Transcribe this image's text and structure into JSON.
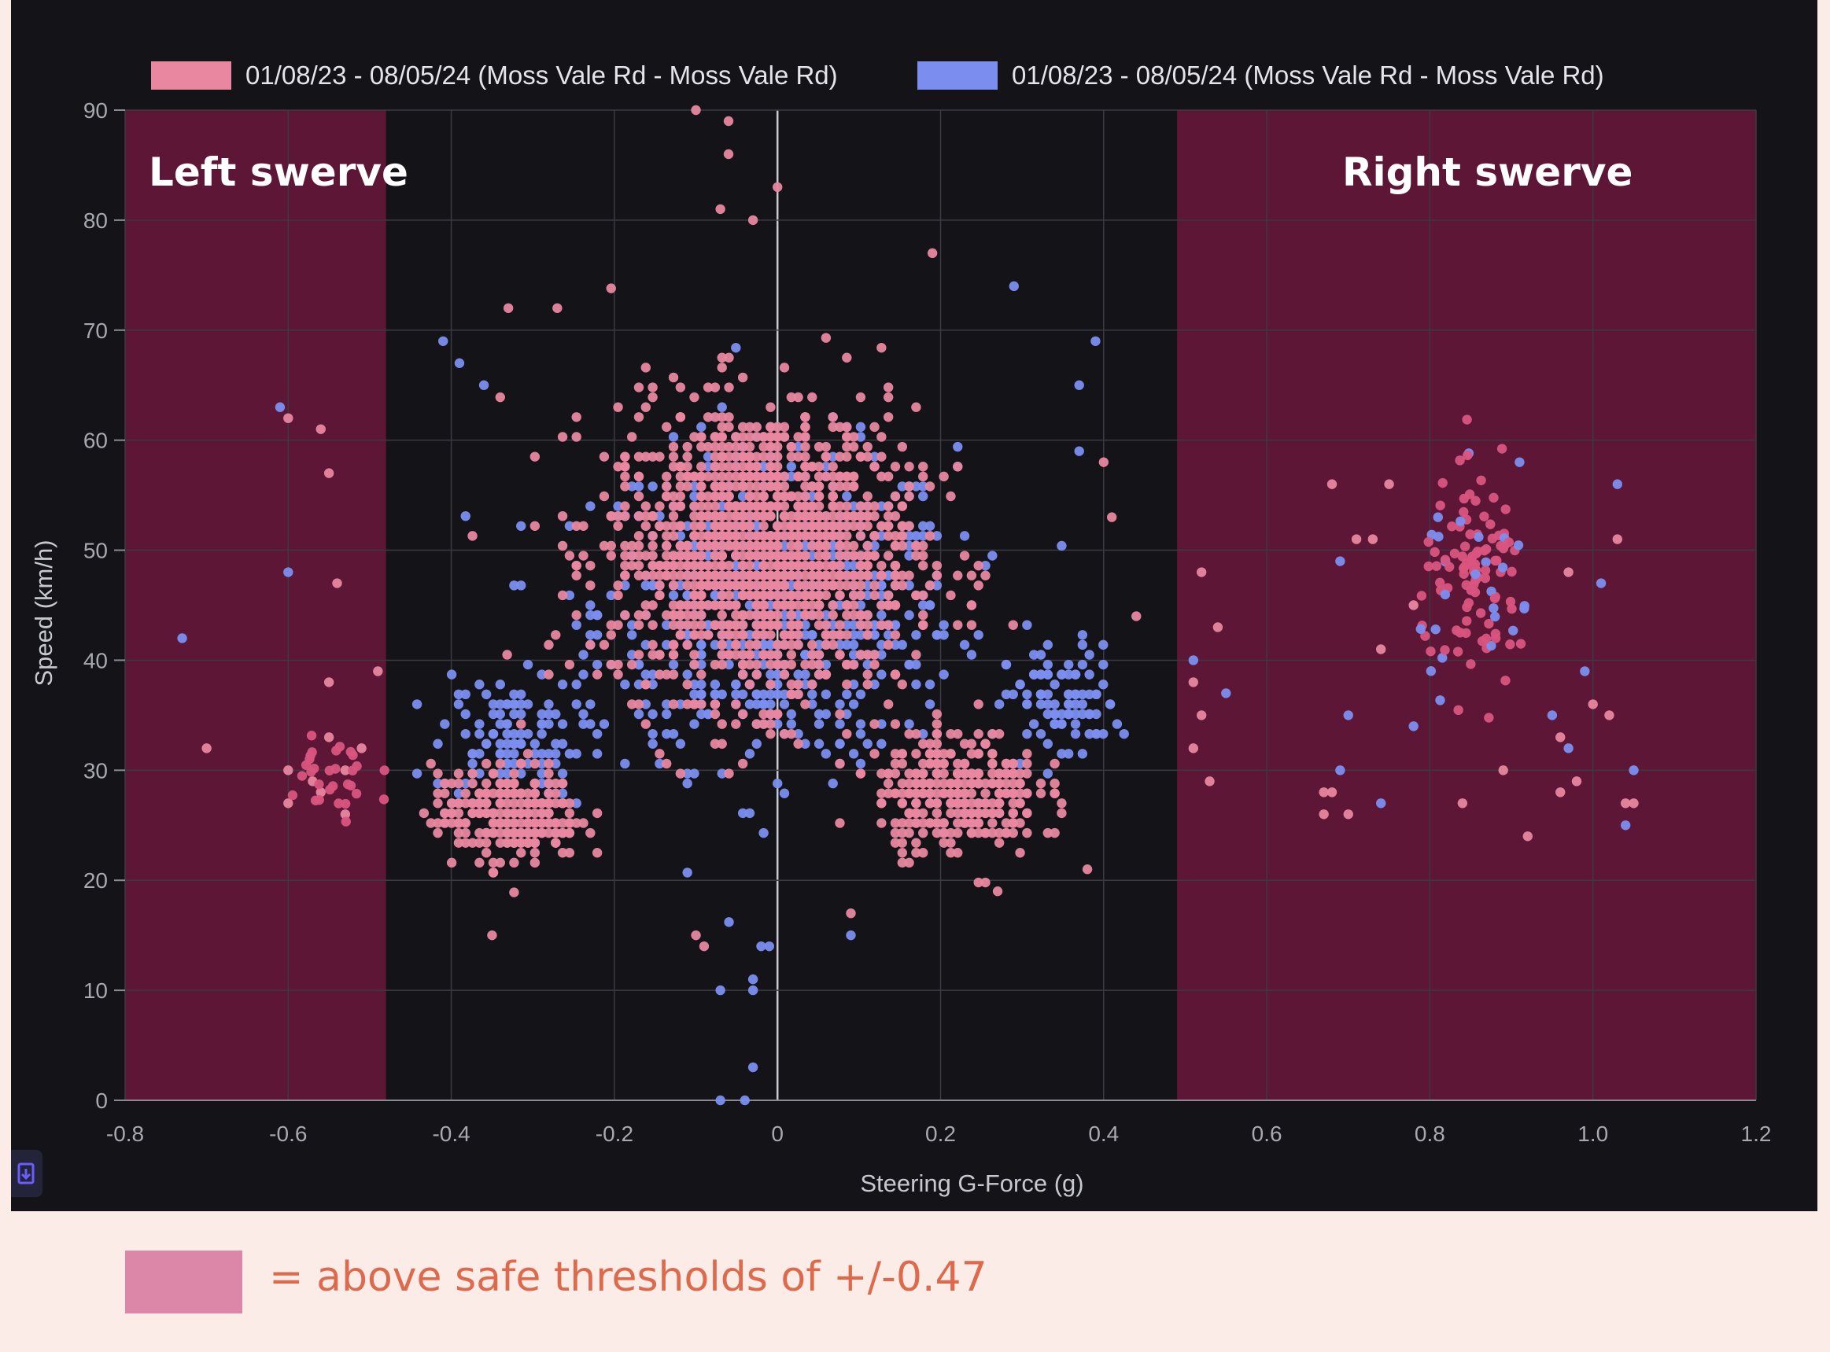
{
  "chart_data": {
    "type": "scatter",
    "title": "",
    "xlabel": "Steering G-Force (g)",
    "ylabel": "Speed (km/h)",
    "xlim": [
      -0.8,
      1.2
    ],
    "ylim": [
      0,
      90
    ],
    "x_ticks": [
      "-0.8",
      "-0.6",
      "-0.4",
      "-0.2",
      "0",
      "0.2",
      "0.4",
      "0.6",
      "0.8",
      "1.0",
      "1.2"
    ],
    "y_ticks": [
      "0",
      "10",
      "20",
      "30",
      "40",
      "50",
      "60",
      "70",
      "80",
      "90"
    ],
    "grid": true,
    "legend_position": "top",
    "series": [
      {
        "name": "01/08/23 - 08/05/24 (Moss Vale Rd - Moss Vale Rd)",
        "color": "#e8879f",
        "cluster_centers": [
          {
            "x": -0.02,
            "y": 50,
            "spread_x": 0.17,
            "spread_y": 12,
            "count": 1300
          },
          {
            "x": -0.33,
            "y": 26,
            "spread_x": 0.08,
            "spread_y": 4,
            "count": 260
          },
          {
            "x": 0.22,
            "y": 28,
            "spread_x": 0.09,
            "spread_y": 5,
            "count": 320
          }
        ],
        "points": [
          {
            "x": -0.1,
            "y": 90
          },
          {
            "x": -0.06,
            "y": 89
          },
          {
            "x": -0.06,
            "y": 86
          },
          {
            "x": 0.0,
            "y": 83
          },
          {
            "x": -0.07,
            "y": 81
          },
          {
            "x": -0.03,
            "y": 80
          },
          {
            "x": 0.19,
            "y": 77
          },
          {
            "x": -0.33,
            "y": 72
          },
          {
            "x": -0.27,
            "y": 72
          },
          {
            "x": -0.6,
            "y": 62
          },
          {
            "x": -0.56,
            "y": 61
          },
          {
            "x": -0.55,
            "y": 57
          },
          {
            "x": -0.54,
            "y": 47
          },
          {
            "x": -0.55,
            "y": 38
          },
          {
            "x": -0.49,
            "y": 39
          },
          {
            "x": -0.7,
            "y": 32
          },
          {
            "x": -0.6,
            "y": 30
          },
          {
            "x": -0.6,
            "y": 27
          },
          {
            "x": -0.56,
            "y": 28
          },
          {
            "x": -0.53,
            "y": 26
          },
          {
            "x": -0.55,
            "y": 33
          },
          {
            "x": -0.57,
            "y": 29
          },
          {
            "x": -0.53,
            "y": 30
          },
          {
            "x": -0.51,
            "y": 32
          },
          {
            "x": -0.35,
            "y": 15
          },
          {
            "x": -0.09,
            "y": 14
          },
          {
            "x": -0.1,
            "y": 15
          },
          {
            "x": 0.09,
            "y": 17
          },
          {
            "x": 0.27,
            "y": 19
          },
          {
            "x": 0.38,
            "y": 21
          },
          {
            "x": 0.4,
            "y": 58
          },
          {
            "x": 0.41,
            "y": 53
          },
          {
            "x": 0.44,
            "y": 44
          },
          {
            "x": 0.52,
            "y": 48
          },
          {
            "x": 0.54,
            "y": 43
          },
          {
            "x": 0.51,
            "y": 38
          },
          {
            "x": 0.52,
            "y": 35
          },
          {
            "x": 0.51,
            "y": 32
          },
          {
            "x": 0.53,
            "y": 29
          },
          {
            "x": 0.67,
            "y": 28
          },
          {
            "x": 0.67,
            "y": 26
          },
          {
            "x": 0.68,
            "y": 28
          },
          {
            "x": 0.7,
            "y": 26
          },
          {
            "x": 0.68,
            "y": 56
          },
          {
            "x": 0.75,
            "y": 56
          },
          {
            "x": 0.73,
            "y": 51
          },
          {
            "x": 0.71,
            "y": 51
          },
          {
            "x": 0.74,
            "y": 41
          },
          {
            "x": 0.78,
            "y": 45
          },
          {
            "x": 0.84,
            "y": 27
          },
          {
            "x": 0.89,
            "y": 30
          },
          {
            "x": 0.92,
            "y": 24
          },
          {
            "x": 0.96,
            "y": 33
          },
          {
            "x": 0.98,
            "y": 29
          },
          {
            "x": 0.96,
            "y": 28
          },
          {
            "x": 1.0,
            "y": 36
          },
          {
            "x": 1.02,
            "y": 35
          },
          {
            "x": 1.04,
            "y": 27
          },
          {
            "x": 1.05,
            "y": 27
          },
          {
            "x": 0.97,
            "y": 48
          },
          {
            "x": 1.03,
            "y": 51
          }
        ]
      },
      {
        "name": "01/08/23 - 08/05/24 (Moss Vale Rd - Moss Vale Rd)",
        "color": "#7b8ef0",
        "cluster_centers": [
          {
            "x": 0.0,
            "y": 45,
            "spread_x": 0.2,
            "spread_y": 13,
            "count": 700
          },
          {
            "x": -0.33,
            "y": 33,
            "spread_x": 0.08,
            "spread_y": 5,
            "count": 110
          },
          {
            "x": 0.35,
            "y": 36,
            "spread_x": 0.06,
            "spread_y": 5,
            "count": 90
          }
        ],
        "points": [
          {
            "x": -0.61,
            "y": 63
          },
          {
            "x": -0.6,
            "y": 48
          },
          {
            "x": -0.73,
            "y": 42
          },
          {
            "x": -0.41,
            "y": 69
          },
          {
            "x": -0.39,
            "y": 67
          },
          {
            "x": -0.36,
            "y": 65
          },
          {
            "x": 0.29,
            "y": 74
          },
          {
            "x": 0.39,
            "y": 69
          },
          {
            "x": 0.37,
            "y": 65
          },
          {
            "x": 0.37,
            "y": 59
          },
          {
            "x": -0.07,
            "y": 10
          },
          {
            "x": -0.03,
            "y": 10
          },
          {
            "x": -0.03,
            "y": 11
          },
          {
            "x": -0.02,
            "y": 14
          },
          {
            "x": -0.01,
            "y": 14
          },
          {
            "x": -0.03,
            "y": 3
          },
          {
            "x": -0.07,
            "y": 0
          },
          {
            "x": -0.04,
            "y": 0
          },
          {
            "x": 0.09,
            "y": 15
          },
          {
            "x": 0.51,
            "y": 40
          },
          {
            "x": 0.55,
            "y": 37
          },
          {
            "x": 0.69,
            "y": 49
          },
          {
            "x": 0.69,
            "y": 30
          },
          {
            "x": 0.7,
            "y": 35
          },
          {
            "x": 0.74,
            "y": 27
          },
          {
            "x": 0.78,
            "y": 34
          },
          {
            "x": 0.81,
            "y": 53
          },
          {
            "x": 0.91,
            "y": 58
          },
          {
            "x": 0.95,
            "y": 35
          },
          {
            "x": 0.97,
            "y": 32
          },
          {
            "x": 0.99,
            "y": 39
          },
          {
            "x": 1.01,
            "y": 47
          },
          {
            "x": 1.03,
            "y": 56
          },
          {
            "x": 1.04,
            "y": 25
          },
          {
            "x": 1.05,
            "y": 30
          }
        ]
      }
    ],
    "shaded_regions": [
      {
        "label": "Left swerve",
        "x_from": -0.8,
        "x_to": -0.48,
        "color": "#5d1636"
      },
      {
        "label": "Right swerve",
        "x_from": 0.49,
        "x_to": 1.2,
        "color": "#5d1636"
      }
    ],
    "annotations": {
      "left": "Left swerve",
      "right": "Right swerve"
    }
  },
  "legend_note": {
    "text": "= above safe thresholds of +/-0.47",
    "swatch_color": "#dd87a8",
    "text_color": "#dd6a4c"
  },
  "colors": {
    "panel_background": "#141418",
    "page_background": "#fbece7",
    "grid": "#3a3a42",
    "axis_text": "#a8a8b0"
  }
}
